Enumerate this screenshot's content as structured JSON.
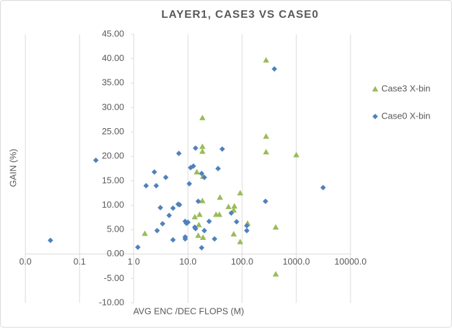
{
  "chart_data": {
    "type": "scatter",
    "title": "LAYER1, CASE3 VS CASE0",
    "x_label": "AVG ENC /DEC FLOPS (M)",
    "y_label": "GAIN (%)",
    "x_scale": "log",
    "xlim": [
      0.01,
      10000
    ],
    "xticks": [
      {
        "value": 0.01,
        "label": "0.0"
      },
      {
        "value": 0.1,
        "label": "0.1"
      },
      {
        "value": 1,
        "label": "1.0"
      },
      {
        "value": 10,
        "label": "10.0"
      },
      {
        "value": 100,
        "label": "100.0"
      },
      {
        "value": 1000,
        "label": "1000.0"
      },
      {
        "value": 10000,
        "label": "10000.0"
      }
    ],
    "ylim": [
      -10,
      45
    ],
    "yticks": [
      {
        "value": -10,
        "label": "-10.00"
      },
      {
        "value": -5,
        "label": "-5.00"
      },
      {
        "value": 0,
        "label": "0.00"
      },
      {
        "value": 5,
        "label": "5.00"
      },
      {
        "value": 10,
        "label": "10.00"
      },
      {
        "value": 15,
        "label": "15.00"
      },
      {
        "value": 20,
        "label": "20.00"
      },
      {
        "value": 25,
        "label": "25.00"
      },
      {
        "value": 30,
        "label": "30.00"
      },
      {
        "value": 35,
        "label": "35.00"
      },
      {
        "value": 40,
        "label": "40.00"
      },
      {
        "value": 45,
        "label": "45.00"
      }
    ],
    "y_axis_crosses": 1,
    "x_axis_crosses": 0,
    "x_grid": true,
    "legend": "right",
    "series": [
      {
        "name": "Case3 X-bin",
        "color": "#9bbb59",
        "marker": "triangle",
        "x": [
          277,
          277,
          277,
          1000,
          18.5,
          18.5,
          18.5,
          14.6,
          19,
          92,
          39,
          18.5,
          56,
          72,
          70,
          38,
          33,
          16.4,
          13.4,
          126,
          15.9,
          1.6,
          70,
          15.5,
          19,
          92,
          417,
          417
        ],
        "values": [
          39.7,
          24.1,
          20.9,
          20.3,
          27.9,
          22.0,
          21.0,
          16.8,
          15.9,
          12.5,
          11.6,
          10.9,
          9.7,
          9.8,
          9.0,
          8.1,
          8.1,
          8.1,
          7.6,
          6.3,
          6.0,
          4.2,
          4.1,
          3.8,
          3.4,
          2.5,
          5.5,
          -4.1
        ]
      },
      {
        "name": "Case0 X-bin",
        "color": "#4f81bd",
        "marker": "diamond",
        "x": [
          0.2,
          0.029,
          394,
          3120,
          270,
          43,
          13.8,
          6.8,
          2.4,
          3.9,
          11.2,
          12.6,
          17.9,
          20.1,
          36,
          1.69,
          2.6,
          10.6,
          15.5,
          6.6,
          7.0,
          3.1,
          5.3,
          4.5,
          3.4,
          8.9,
          9.4,
          10,
          24.6,
          79,
          63,
          122,
          122,
          13.4,
          13.8,
          20.1,
          2.7,
          5.3,
          8.9,
          8.9,
          31,
          1.19,
          17.9
        ],
        "values": [
          19.2,
          2.8,
          37.9,
          13.6,
          10.8,
          21.5,
          21.7,
          20.6,
          16.8,
          15.7,
          17.7,
          18.0,
          16.5,
          15.7,
          17.5,
          14.0,
          14.0,
          14.4,
          10.8,
          10.2,
          10.1,
          9.5,
          9.4,
          7.9,
          6.2,
          6.7,
          6.3,
          6.5,
          6.7,
          6.6,
          8.4,
          5.8,
          4.8,
          5.5,
          5.2,
          4.8,
          4.8,
          2.9,
          3.5,
          3.1,
          3.1,
          1.4,
          1.3
        ]
      }
    ]
  }
}
